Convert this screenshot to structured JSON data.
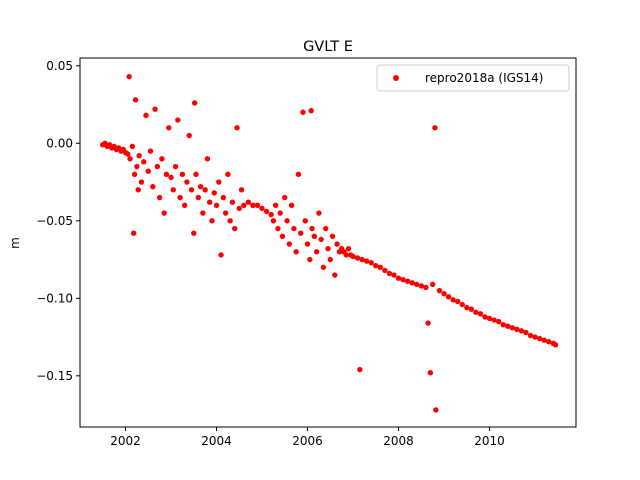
{
  "chart_data": {
    "type": "scatter",
    "title": "GVLT E",
    "xlabel": "",
    "ylabel": "m",
    "xlim": [
      2001.0,
      2011.9
    ],
    "ylim": [
      -0.183,
      0.055
    ],
    "xticks": [
      2002,
      2004,
      2006,
      2008,
      2010
    ],
    "xtick_labels": [
      "2002",
      "2004",
      "2006",
      "2008",
      "2010"
    ],
    "yticks": [
      -0.15,
      -0.1,
      -0.05,
      0.0,
      0.05
    ],
    "ytick_labels": [
      "−0.15",
      "−0.10",
      "−0.05",
      "0.00",
      "0.05"
    ],
    "grid": false,
    "legend": {
      "position": "top-right"
    },
    "series": [
      {
        "name": "repro2018a (IGS14)",
        "color": "#ff0000",
        "marker": "circle",
        "points": [
          [
            2001.5,
            -0.001
          ],
          [
            2001.55,
            0.0
          ],
          [
            2001.6,
            -0.002
          ],
          [
            2001.65,
            -0.001
          ],
          [
            2001.7,
            -0.003
          ],
          [
            2001.75,
            -0.002
          ],
          [
            2001.8,
            -0.004
          ],
          [
            2001.85,
            -0.003
          ],
          [
            2001.9,
            -0.005
          ],
          [
            2001.95,
            -0.004
          ],
          [
            2002.0,
            -0.006
          ],
          [
            2002.05,
            -0.007
          ],
          [
            2002.08,
            0.043
          ],
          [
            2002.1,
            -0.01
          ],
          [
            2002.15,
            -0.002
          ],
          [
            2002.18,
            -0.058
          ],
          [
            2002.2,
            -0.02
          ],
          [
            2002.22,
            0.028
          ],
          [
            2002.25,
            -0.015
          ],
          [
            2002.28,
            -0.03
          ],
          [
            2002.3,
            -0.008
          ],
          [
            2002.35,
            -0.025
          ],
          [
            2002.4,
            -0.012
          ],
          [
            2002.45,
            0.018
          ],
          [
            2002.5,
            -0.018
          ],
          [
            2002.55,
            -0.005
          ],
          [
            2002.6,
            -0.028
          ],
          [
            2002.65,
            0.022
          ],
          [
            2002.7,
            -0.015
          ],
          [
            2002.75,
            -0.035
          ],
          [
            2002.8,
            -0.01
          ],
          [
            2002.85,
            -0.045
          ],
          [
            2002.9,
            -0.02
          ],
          [
            2002.95,
            0.01
          ],
          [
            2003.0,
            -0.022
          ],
          [
            2003.05,
            -0.03
          ],
          [
            2003.1,
            -0.015
          ],
          [
            2003.15,
            0.015
          ],
          [
            2003.2,
            -0.035
          ],
          [
            2003.25,
            -0.02
          ],
          [
            2003.3,
            -0.04
          ],
          [
            2003.35,
            -0.025
          ],
          [
            2003.4,
            0.005
          ],
          [
            2003.45,
            -0.03
          ],
          [
            2003.5,
            -0.058
          ],
          [
            2003.52,
            0.026
          ],
          [
            2003.55,
            -0.02
          ],
          [
            2003.6,
            -0.035
          ],
          [
            2003.65,
            -0.028
          ],
          [
            2003.7,
            -0.045
          ],
          [
            2003.75,
            -0.03
          ],
          [
            2003.8,
            -0.01
          ],
          [
            2003.85,
            -0.038
          ],
          [
            2003.9,
            -0.05
          ],
          [
            2003.95,
            -0.032
          ],
          [
            2004.0,
            -0.04
          ],
          [
            2004.05,
            -0.025
          ],
          [
            2004.1,
            -0.072
          ],
          [
            2004.15,
            -0.035
          ],
          [
            2004.2,
            -0.045
          ],
          [
            2004.25,
            -0.02
          ],
          [
            2004.3,
            -0.05
          ],
          [
            2004.35,
            -0.038
          ],
          [
            2004.4,
            -0.055
          ],
          [
            2004.45,
            0.01
          ],
          [
            2004.5,
            -0.042
          ],
          [
            2004.55,
            -0.03
          ],
          [
            2004.6,
            -0.04
          ],
          [
            2004.7,
            -0.038
          ],
          [
            2004.8,
            -0.04
          ],
          [
            2004.9,
            -0.04
          ],
          [
            2005.0,
            -0.042
          ],
          [
            2005.1,
            -0.044
          ],
          [
            2005.2,
            -0.046
          ],
          [
            2005.25,
            -0.05
          ],
          [
            2005.3,
            -0.04
          ],
          [
            2005.35,
            -0.055
          ],
          [
            2005.4,
            -0.045
          ],
          [
            2005.45,
            -0.06
          ],
          [
            2005.5,
            -0.035
          ],
          [
            2005.55,
            -0.05
          ],
          [
            2005.6,
            -0.065
          ],
          [
            2005.65,
            -0.04
          ],
          [
            2005.7,
            -0.055
          ],
          [
            2005.75,
            -0.07
          ],
          [
            2005.8,
            -0.02
          ],
          [
            2005.85,
            -0.058
          ],
          [
            2005.9,
            0.02
          ],
          [
            2005.95,
            -0.05
          ],
          [
            2006.0,
            -0.065
          ],
          [
            2006.05,
            -0.075
          ],
          [
            2006.08,
            0.021
          ],
          [
            2006.1,
            -0.055
          ],
          [
            2006.15,
            -0.06
          ],
          [
            2006.2,
            -0.07
          ],
          [
            2006.25,
            -0.045
          ],
          [
            2006.3,
            -0.062
          ],
          [
            2006.35,
            -0.08
          ],
          [
            2006.4,
            -0.055
          ],
          [
            2006.45,
            -0.068
          ],
          [
            2006.5,
            -0.075
          ],
          [
            2006.55,
            -0.06
          ],
          [
            2006.6,
            -0.085
          ],
          [
            2006.65,
            -0.065
          ],
          [
            2006.7,
            -0.07
          ],
          [
            2006.75,
            -0.068
          ],
          [
            2006.8,
            -0.07
          ],
          [
            2006.85,
            -0.072
          ],
          [
            2006.9,
            -0.068
          ],
          [
            2006.95,
            -0.072
          ],
          [
            2007.0,
            -0.073
          ],
          [
            2007.1,
            -0.074
          ],
          [
            2007.15,
            -0.146
          ],
          [
            2007.2,
            -0.075
          ],
          [
            2007.3,
            -0.076
          ],
          [
            2007.4,
            -0.077
          ],
          [
            2007.5,
            -0.079
          ],
          [
            2007.6,
            -0.08
          ],
          [
            2007.7,
            -0.082
          ],
          [
            2007.8,
            -0.084
          ],
          [
            2007.9,
            -0.085
          ],
          [
            2008.0,
            -0.087
          ],
          [
            2008.1,
            -0.088
          ],
          [
            2008.2,
            -0.089
          ],
          [
            2008.3,
            -0.09
          ],
          [
            2008.4,
            -0.091
          ],
          [
            2008.5,
            -0.092
          ],
          [
            2008.6,
            -0.093
          ],
          [
            2008.65,
            -0.116
          ],
          [
            2008.7,
            -0.148
          ],
          [
            2008.75,
            -0.091
          ],
          [
            2008.8,
            0.01
          ],
          [
            2008.82,
            -0.172
          ],
          [
            2008.9,
            -0.095
          ],
          [
            2009.0,
            -0.097
          ],
          [
            2009.1,
            -0.099
          ],
          [
            2009.2,
            -0.101
          ],
          [
            2009.3,
            -0.102
          ],
          [
            2009.4,
            -0.104
          ],
          [
            2009.5,
            -0.106
          ],
          [
            2009.6,
            -0.107
          ],
          [
            2009.7,
            -0.109
          ],
          [
            2009.8,
            -0.11
          ],
          [
            2009.9,
            -0.112
          ],
          [
            2010.0,
            -0.113
          ],
          [
            2010.1,
            -0.114
          ],
          [
            2010.2,
            -0.115
          ],
          [
            2010.3,
            -0.117
          ],
          [
            2010.4,
            -0.118
          ],
          [
            2010.5,
            -0.119
          ],
          [
            2010.6,
            -0.12
          ],
          [
            2010.7,
            -0.121
          ],
          [
            2010.8,
            -0.122
          ],
          [
            2010.9,
            -0.124
          ],
          [
            2011.0,
            -0.125
          ],
          [
            2011.1,
            -0.126
          ],
          [
            2011.2,
            -0.127
          ],
          [
            2011.3,
            -0.128
          ],
          [
            2011.4,
            -0.129
          ],
          [
            2011.45,
            -0.13
          ]
        ]
      }
    ]
  }
}
